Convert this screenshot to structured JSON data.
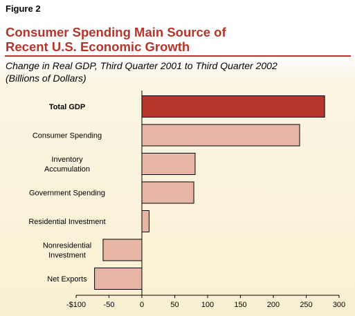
{
  "figure_label": "Figure 2",
  "title_lines": [
    "Consumer Spending Main Source of",
    "Recent U.S. Economic Growth"
  ],
  "subtitle_lines": [
    "Change in Real GDP, Third Quarter 2001 to Third Quarter 2002",
    "(Billions of Dollars)"
  ],
  "colors": {
    "title": "#b5352b",
    "total_bar": "#b5352b",
    "component_bar": "#e6b5a6",
    "bar_stroke": "#000000"
  },
  "chart_data": {
    "type": "bar",
    "orientation": "horizontal",
    "categories": [
      [
        "Total GDP"
      ],
      [
        "Consumer Spending"
      ],
      [
        "Inventory",
        "Accumulation"
      ],
      [
        "Government Spending"
      ],
      [
        "Residential Investment"
      ],
      [
        "Nonresidential",
        "Investment"
      ],
      [
        "Net Exports"
      ]
    ],
    "values": [
      278,
      240,
      81,
      79,
      11,
      -59,
      -72
    ],
    "highlight_index": 0,
    "xlim": [
      -100,
      300
    ],
    "x_ticks": [
      "-$100",
      "-50",
      "0",
      "50",
      "100",
      "150",
      "200",
      "250",
      "300"
    ],
    "x_tick_values": [
      -100,
      -50,
      0,
      50,
      100,
      150,
      200,
      250,
      300
    ],
    "grid": false,
    "legend": "none"
  }
}
